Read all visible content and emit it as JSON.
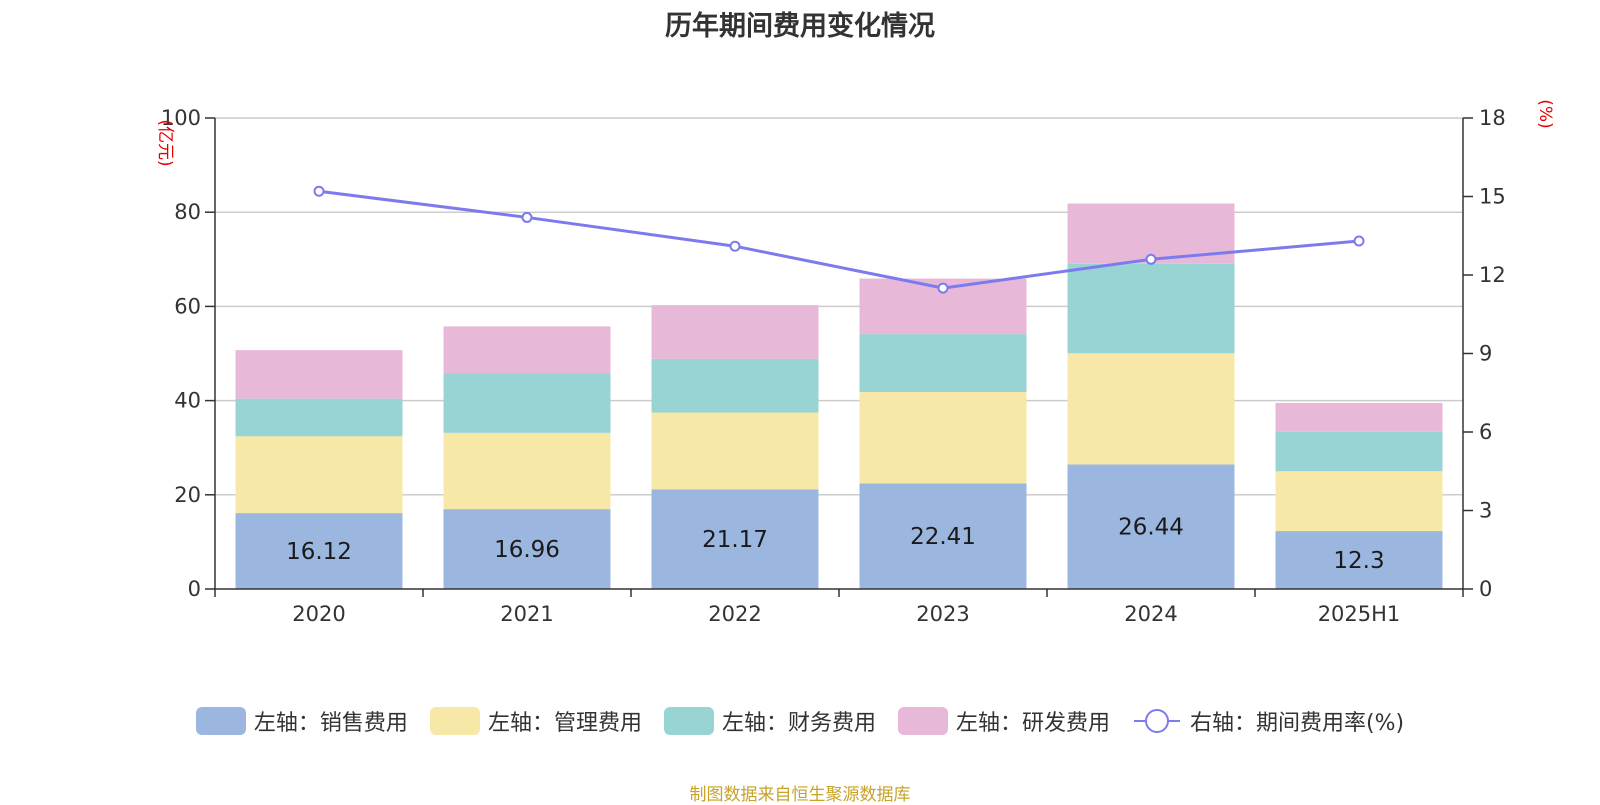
{
  "chart_data": {
    "type": "bar",
    "title": "历年期间费用变化情况",
    "categories": [
      "2020",
      "2021",
      "2022",
      "2023",
      "2024",
      "2025H1"
    ],
    "left_axis": {
      "unit": "(亿元)",
      "ylim": [
        0,
        100
      ],
      "ticks": [
        "0",
        "20",
        "40",
        "60",
        "80",
        "100"
      ]
    },
    "right_axis": {
      "unit": "(%)",
      "ylim": [
        0,
        18
      ],
      "ticks": [
        "0",
        "3",
        "6",
        "9",
        "12",
        "15",
        "18"
      ]
    },
    "grid": true,
    "legend_position": "bottom",
    "stacked_series": [
      {
        "name": "左轴：销售费用",
        "color": "#9bb7e0",
        "values": [
          16.12,
          16.96,
          21.17,
          22.41,
          26.44,
          12.3
        ],
        "labels": [
          "16.12",
          "16.96",
          "21.17",
          "22.41",
          "26.44",
          "12.3"
        ]
      },
      {
        "name": "左轴：管理费用",
        "color": "#f8e8a8",
        "values": [
          16.3,
          16.2,
          16.3,
          19.4,
          23.6,
          12.7
        ]
      },
      {
        "name": "左轴：财务费用",
        "color": "#98d4d4",
        "values": [
          8.0,
          12.6,
          11.4,
          12.3,
          19.0,
          8.4
        ]
      },
      {
        "name": "左轴：研发费用",
        "color": "#e8b8d8",
        "values": [
          10.3,
          10.0,
          11.4,
          11.8,
          12.8,
          6.1
        ]
      }
    ],
    "line_series": {
      "name": "右轴：期间费用率(%)",
      "color": "#7b7bee",
      "values": [
        15.2,
        14.2,
        13.1,
        11.5,
        12.6,
        13.3
      ]
    },
    "source": "制图数据来自恒生聚源数据库"
  }
}
